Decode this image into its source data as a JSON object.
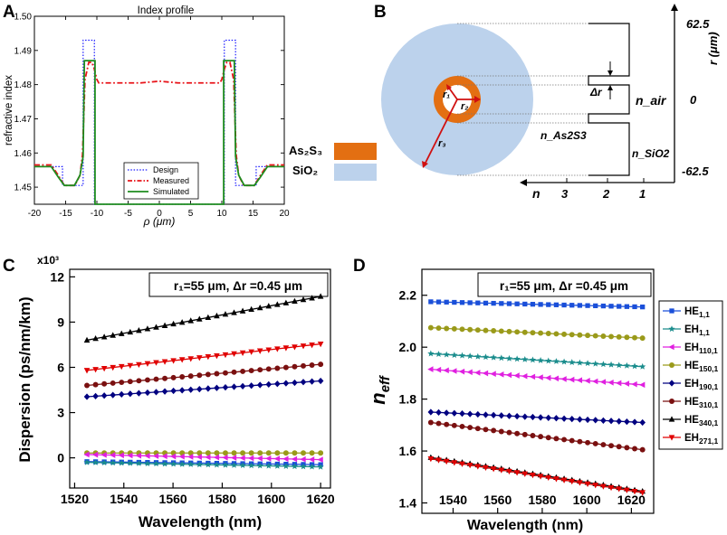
{
  "panels": {
    "A": "A",
    "B": "B",
    "C": "C",
    "D": "D"
  },
  "chart_data": [
    {
      "id": "A",
      "type": "line",
      "title": "Index profile",
      "xlabel": "ρ (μm)",
      "ylabel": "refractive index",
      "xlim": [
        -20,
        20
      ],
      "ylim": [
        1.445,
        1.5
      ],
      "xticks": [
        -20,
        -15,
        -10,
        -5,
        0,
        5,
        10,
        15,
        20
      ],
      "yticks": [
        1.45,
        1.46,
        1.47,
        1.48,
        1.49,
        1.5
      ],
      "ytick_labels": [
        "1.45",
        "1.46",
        "1.47",
        "1.48",
        "1.49",
        "1.50"
      ],
      "legend_position": "bottom-center",
      "series": [
        {
          "name": "Design",
          "color": "#1a1aff",
          "style": "dotted",
          "x": [
            -20,
            -15.5,
            -15.5,
            -12.2,
            -12.2,
            -10.4,
            -10.4,
            -9.4,
            -9.4,
            9.4,
            9.4,
            10.4,
            10.4,
            12.2,
            12.2,
            15.5,
            15.5,
            20
          ],
          "y": [
            1.456,
            1.456,
            1.4505,
            1.4505,
            1.493,
            1.493,
            1.445,
            1.445,
            1.445,
            1.445,
            1.445,
            1.445,
            1.493,
            1.493,
            1.4505,
            1.4505,
            1.456,
            1.456
          ]
        },
        {
          "name": "Measured",
          "color": "#e8141a",
          "style": "dashdot",
          "x": [
            -20,
            -17.3,
            -16.2,
            -15.2,
            -13.5,
            -12.7,
            -12.3,
            -11.9,
            -11.3,
            -10.8,
            -10.4,
            -10.0,
            -9.7,
            -9,
            -7,
            -5,
            -3,
            0,
            3,
            5,
            7,
            9,
            9.7,
            10.0,
            10.4,
            10.8,
            11.3,
            11.9,
            12.3,
            12.7,
            13.5,
            15.2,
            16.2,
            17.3,
            20
          ],
          "y": [
            1.4565,
            1.4565,
            1.4535,
            1.4505,
            1.4505,
            1.4535,
            1.4595,
            1.4815,
            1.4865,
            1.4865,
            1.4845,
            1.4815,
            1.4805,
            1.4805,
            1.4805,
            1.4805,
            1.4805,
            1.481,
            1.4805,
            1.4805,
            1.4805,
            1.4805,
            1.4805,
            1.4815,
            1.4845,
            1.4865,
            1.4865,
            1.4815,
            1.4595,
            1.4535,
            1.4505,
            1.4505,
            1.4535,
            1.4565,
            1.4565
          ]
        },
        {
          "name": "Simulated",
          "color": "#1e8c1e",
          "style": "solid",
          "x": [
            -20,
            -17.3,
            -16.2,
            -15.2,
            -13.6,
            -12.7,
            -12.2,
            -12.0,
            -10.6,
            -10.3,
            -10.3,
            -9.5,
            -9.5,
            9.5,
            9.5,
            10.3,
            10.3,
            10.6,
            12.0,
            12.2,
            12.7,
            13.6,
            15.2,
            16.2,
            17.3,
            20
          ],
          "y": [
            1.456,
            1.456,
            1.453,
            1.4505,
            1.4505,
            1.4535,
            1.459,
            1.487,
            1.487,
            1.487,
            1.445,
            1.445,
            1.445,
            1.445,
            1.445,
            1.445,
            1.487,
            1.487,
            1.487,
            1.459,
            1.4535,
            1.4505,
            1.4505,
            1.453,
            1.456,
            1.456
          ]
        }
      ]
    },
    {
      "id": "C",
      "type": "line",
      "xlabel": "Wavelength (nm)",
      "ylabel": "Dispersion (ps/nm/km)",
      "scale_label": "x10³",
      "annotation": "r₁=55 μm, Δr =0.45 μm",
      "xlim": [
        1518,
        1624
      ],
      "ylim": [
        -2,
        12.5
      ],
      "xticks": [
        1520,
        1540,
        1560,
        1580,
        1600,
        1620
      ],
      "yticks": [
        0,
        3,
        6,
        9,
        12
      ],
      "x_start": 1525,
      "x_end": 1620,
      "n_points": 28,
      "series": [
        {
          "name": "HE340,1",
          "marker": "triangle-up",
          "color": "#000000",
          "y_start": 7.8,
          "y_end": 10.7
        },
        {
          "name": "EH271,1",
          "marker": "triangle-down",
          "color": "#e00000",
          "y_start": 5.8,
          "y_end": 7.55
        },
        {
          "name": "HE310,1",
          "marker": "circle",
          "color": "#7a1010",
          "y_start": 4.8,
          "y_end": 6.2
        },
        {
          "name": "EH190,1",
          "marker": "diamond",
          "color": "#000080",
          "y_start": 4.05,
          "y_end": 5.1
        },
        {
          "name": "HE150,1",
          "marker": "circle",
          "color": "#9a9a1a",
          "y_start": 0.32,
          "y_end": 0.32
        },
        {
          "name": "EH110,1",
          "marker": "triangle-left",
          "color": "#e020e0",
          "y_start": 0.22,
          "y_end": -0.12
        },
        {
          "name": "HE1,1",
          "marker": "square",
          "color": "#1a4fd9",
          "y_start": -0.25,
          "y_end": -0.45
        },
        {
          "name": "EH1,1",
          "marker": "star",
          "color": "#1a8c8c",
          "y_start": -0.3,
          "y_end": -0.6
        }
      ]
    },
    {
      "id": "D",
      "type": "line",
      "xlabel": "Wavelength (nm)",
      "ylabel": "n_eff",
      "annotation": "r₁=55 μm, Δr =0.45 μm",
      "xlim": [
        1526,
        1630
      ],
      "ylim": [
        1.36,
        2.3
      ],
      "xticks": [
        1540,
        1560,
        1580,
        1600,
        1620
      ],
      "yticks": [
        1.4,
        1.6,
        1.8,
        2.0,
        2.2
      ],
      "ytick_labels": [
        "1.4",
        "1.6",
        "1.8",
        "2.0",
        "2.2"
      ],
      "x_start": 1530,
      "x_end": 1625,
      "n_points": 28,
      "legend_position": "right",
      "series": [
        {
          "name": "HE1,1",
          "marker": "square",
          "color": "#1a4fd9",
          "y_start": 2.175,
          "y_end": 2.155
        },
        {
          "name": "EH1,1",
          "marker": "star",
          "color": "#1a8c8c",
          "y_start": 1.975,
          "y_end": 1.925
        },
        {
          "name": "EH110,1",
          "marker": "triangle-left",
          "color": "#e020e0",
          "y_start": 1.915,
          "y_end": 1.855
        },
        {
          "name": "HE150,1",
          "marker": "circle",
          "color": "#9a9a1a",
          "y_start": 2.075,
          "y_end": 2.035
        },
        {
          "name": "EH190,1",
          "marker": "diamond",
          "color": "#000080",
          "y_start": 1.75,
          "y_end": 1.71
        },
        {
          "name": "HE310,1",
          "marker": "circle",
          "color": "#7a1010",
          "y_start": 1.71,
          "y_end": 1.605
        },
        {
          "name": "HE340,1",
          "marker": "triangle-up",
          "color": "#000000",
          "y_start": 1.575,
          "y_end": 1.445
        },
        {
          "name": "EH271,1",
          "marker": "triangle-down",
          "color": "#e00000",
          "y_start": 1.57,
          "y_end": 1.44
        }
      ]
    }
  ],
  "schematic": {
    "materials": [
      {
        "name": "As₂S₃",
        "color": "#e36f12"
      },
      {
        "name": "SiO₂",
        "color": "#bcd2ec"
      }
    ],
    "labels": {
      "r1": "r₁",
      "r2": "r₂",
      "r3": "r₃",
      "dr": "Δr",
      "n_air": "n_air",
      "n_as2s3": "n_As2S3",
      "n_sio2": "n_SiO2"
    },
    "r_axis": {
      "title": "r (μm)",
      "ticks": [
        "62.5",
        "0",
        "-62.5"
      ]
    },
    "n_axis": {
      "title": "n",
      "ticks": [
        "3",
        "2",
        "1"
      ]
    }
  }
}
